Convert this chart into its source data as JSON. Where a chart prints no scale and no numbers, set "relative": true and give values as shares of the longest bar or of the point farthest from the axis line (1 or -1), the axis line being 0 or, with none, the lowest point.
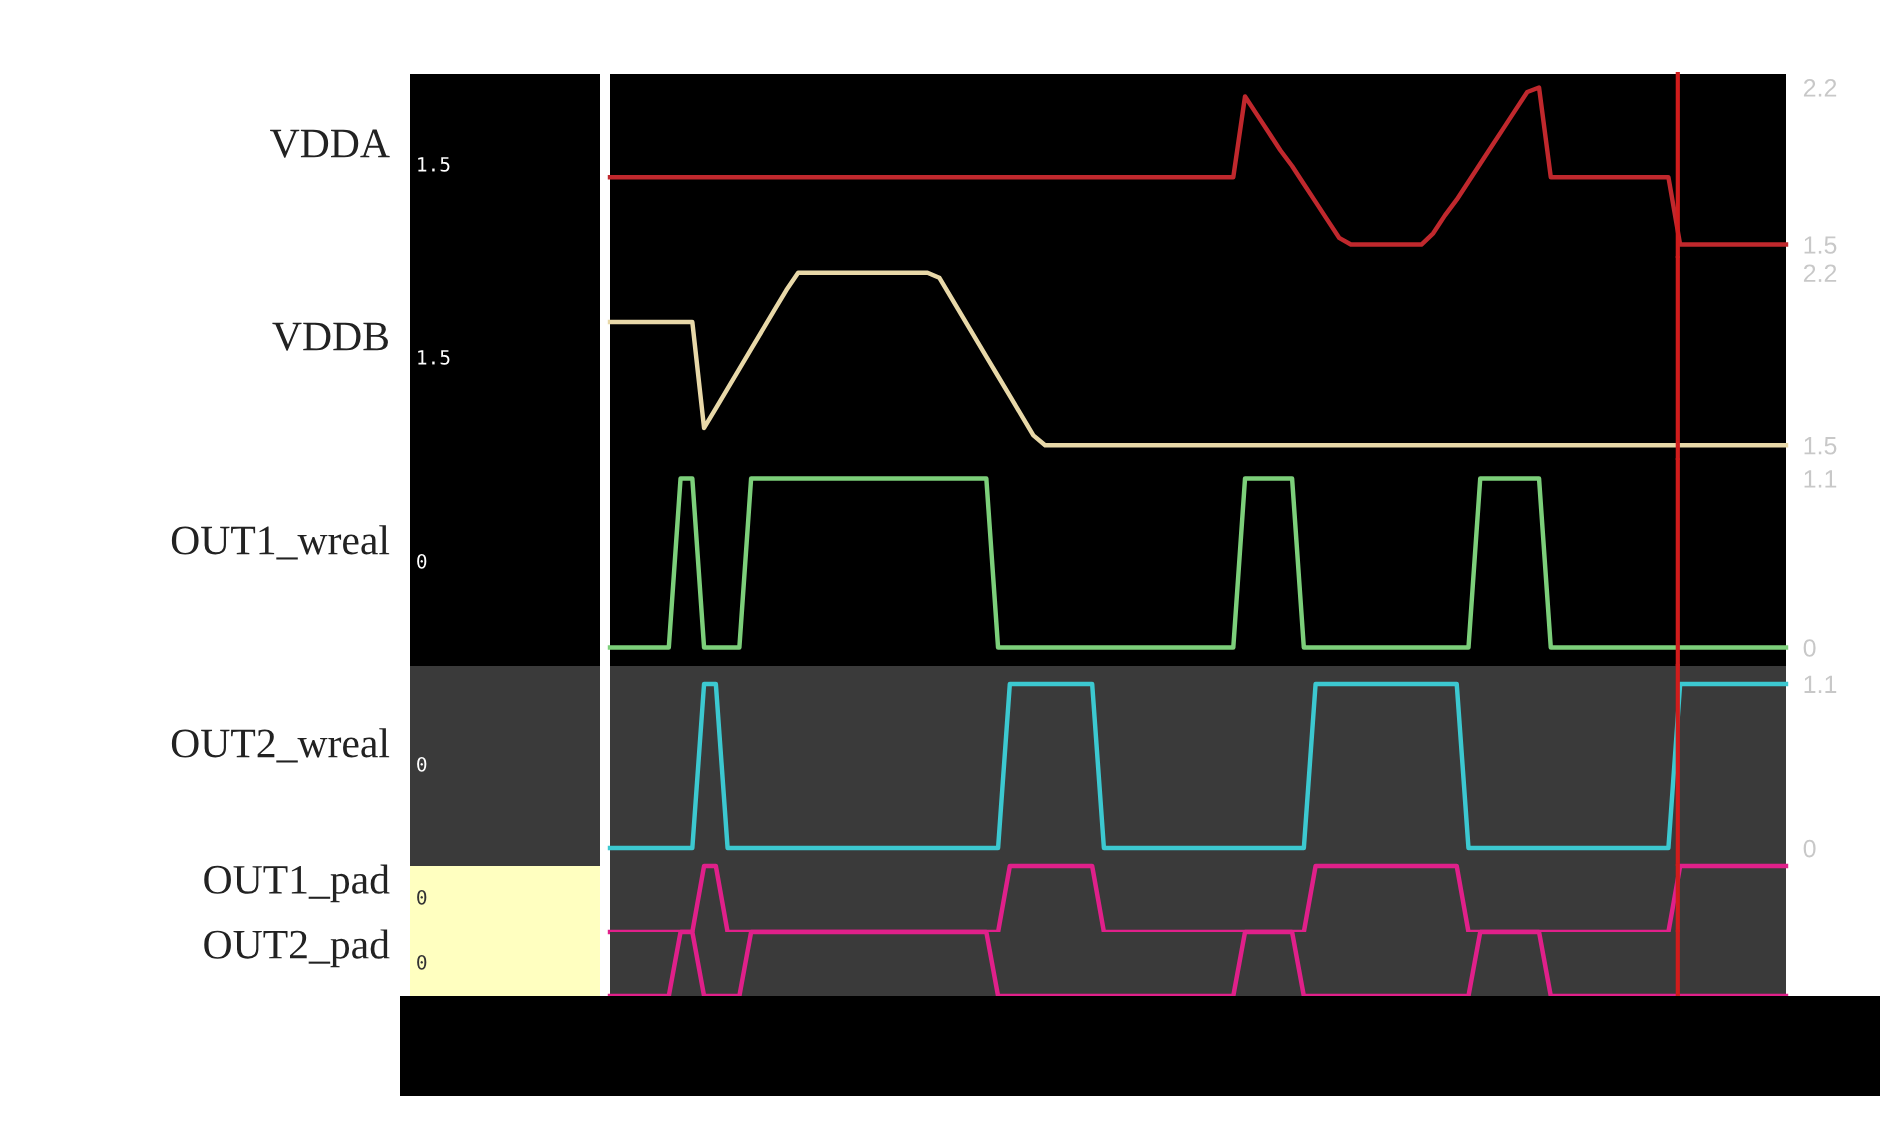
{
  "chart_data": [
    {
      "type": "line",
      "ylabel": "VDDA",
      "categories": [
        null,
        null,
        null,
        null,
        null,
        null,
        null,
        null,
        null,
        null,
        null,
        null,
        null,
        null,
        null,
        null,
        null,
        null,
        null,
        null,
        null,
        null,
        null,
        null,
        null,
        null,
        null,
        null,
        null,
        null,
        null,
        null,
        null,
        null,
        null,
        null,
        null,
        null,
        null,
        null,
        null,
        null,
        null,
        null,
        null,
        null,
        null,
        null,
        null,
        null,
        null,
        null,
        null,
        null,
        null,
        null,
        null,
        null,
        null,
        null,
        null,
        null,
        null,
        null,
        null,
        null,
        null,
        null,
        null,
        null,
        null,
        null,
        null,
        null,
        null,
        null,
        null,
        null,
        null,
        null,
        null,
        null,
        null,
        null,
        null,
        null,
        null,
        null,
        null,
        null,
        null,
        null,
        null,
        null,
        null,
        null,
        null,
        null,
        null,
        null,
        null
      ],
      "ylim": [
        1.44,
        2.26
      ],
      "yticks": [
        1.5,
        2.2
      ],
      "tick_labels": "y",
      "annotations": [
        "1.5"
      ],
      "series": [
        {
          "color": "#c0282d",
          "values": [
            1.8,
            1.8,
            1.8,
            1.8,
            1.8,
            1.8,
            1.8,
            1.8,
            1.8,
            1.8,
            1.8,
            1.8,
            1.8,
            1.8,
            1.8,
            1.8,
            1.8,
            1.8,
            1.8,
            1.8,
            1.8,
            1.8,
            1.8,
            1.8,
            1.8,
            1.8,
            1.8,
            1.8,
            1.8,
            1.8,
            1.8,
            1.8,
            1.8,
            1.8,
            1.8,
            1.8,
            1.8,
            1.8,
            1.8,
            1.8,
            1.8,
            1.8,
            1.8,
            1.8,
            1.8,
            1.8,
            1.8,
            1.8,
            1.8,
            1.8,
            1.8,
            1.8,
            1.8,
            1.8,
            2.16,
            2.08,
            2.0,
            1.92,
            1.85,
            1.77,
            1.69,
            1.61,
            1.53,
            1.5,
            1.5,
            1.5,
            1.5,
            1.5,
            1.5,
            1.5,
            1.55,
            1.63,
            1.7,
            1.78,
            1.86,
            1.94,
            2.02,
            2.1,
            2.18,
            2.2,
            1.8,
            1.8,
            1.8,
            1.8,
            1.8,
            1.8,
            1.8,
            1.8,
            1.8,
            1.8,
            1.8,
            1.5,
            1.5,
            1.5,
            1.5,
            1.5,
            1.5,
            1.5,
            1.5,
            1.5,
            1.5
          ]
        }
      ]
    },
    {
      "type": "line",
      "ylabel": "VDDB",
      "categories": [
        null,
        null,
        null,
        null,
        null,
        null,
        null,
        null,
        null,
        null,
        null,
        null,
        null,
        null,
        null,
        null,
        null,
        null,
        null,
        null,
        null,
        null,
        null,
        null,
        null,
        null,
        null,
        null,
        null,
        null,
        null,
        null,
        null,
        null,
        null,
        null,
        null,
        null,
        null,
        null,
        null,
        null,
        null,
        null,
        null,
        null,
        null,
        null,
        null,
        null,
        null,
        null,
        null,
        null,
        null,
        null,
        null,
        null,
        null,
        null,
        null,
        null,
        null,
        null,
        null,
        null,
        null,
        null,
        null,
        null,
        null,
        null,
        null,
        null,
        null,
        null,
        null,
        null,
        null,
        null,
        null,
        null,
        null,
        null,
        null,
        null,
        null,
        null,
        null,
        null,
        null,
        null,
        null,
        null,
        null,
        null,
        null,
        null,
        null,
        null,
        null
      ],
      "ylim": [
        1.44,
        2.26
      ],
      "yticks": [
        1.5,
        2.2
      ],
      "tick_labels": "y",
      "annotations": [
        "1.5"
      ],
      "series": [
        {
          "color": "#e8d8a8",
          "values": [
            2.0,
            2.0,
            2.0,
            2.0,
            2.0,
            2.0,
            2.0,
            2.0,
            1.57,
            1.65,
            1.73,
            1.81,
            1.89,
            1.97,
            2.05,
            2.13,
            2.2,
            2.2,
            2.2,
            2.2,
            2.2,
            2.2,
            2.2,
            2.2,
            2.2,
            2.2,
            2.2,
            2.2,
            2.18,
            2.1,
            2.02,
            1.94,
            1.86,
            1.78,
            1.7,
            1.62,
            1.54,
            1.5,
            1.5,
            1.5,
            1.5,
            1.5,
            1.5,
            1.5,
            1.5,
            1.5,
            1.5,
            1.5,
            1.5,
            1.5,
            1.5,
            1.5,
            1.5,
            1.5,
            1.5,
            1.5,
            1.5,
            1.5,
            1.5,
            1.5,
            1.5,
            1.5,
            1.5,
            1.5,
            1.5,
            1.5,
            1.5,
            1.5,
            1.5,
            1.5,
            1.5,
            1.5,
            1.5,
            1.5,
            1.5,
            1.5,
            1.5,
            1.5,
            1.5,
            1.5,
            1.5,
            1.5,
            1.5,
            1.5,
            1.5,
            1.5,
            1.5,
            1.5,
            1.5,
            1.5,
            1.5,
            1.5,
            1.5,
            1.5,
            1.5,
            1.5,
            1.5,
            1.5,
            1.5,
            1.5,
            1.5
          ]
        }
      ]
    },
    {
      "type": "line",
      "ylabel": "OUT1_wreal",
      "categories": [
        null,
        null,
        null,
        null,
        null,
        null,
        null,
        null,
        null,
        null,
        null,
        null,
        null,
        null,
        null,
        null,
        null,
        null,
        null,
        null,
        null,
        null,
        null,
        null,
        null,
        null,
        null,
        null,
        null,
        null,
        null,
        null,
        null,
        null,
        null,
        null,
        null,
        null,
        null,
        null,
        null,
        null,
        null,
        null,
        null,
        null,
        null,
        null,
        null,
        null,
        null,
        null,
        null,
        null,
        null,
        null,
        null,
        null,
        null,
        null,
        null,
        null,
        null,
        null,
        null,
        null,
        null,
        null,
        null,
        null,
        null,
        null,
        null,
        null,
        null,
        null,
        null,
        null,
        null,
        null,
        null,
        null,
        null,
        null,
        null,
        null,
        null,
        null,
        null,
        null,
        null,
        null,
        null,
        null,
        null,
        null,
        null,
        null,
        null,
        null,
        null
      ],
      "ylim": [
        -0.12,
        1.22
      ],
      "yticks": [
        0,
        1.1
      ],
      "tick_labels": "y",
      "annotations": [
        "0"
      ],
      "series": [
        {
          "color": "#7ccf7a",
          "values": [
            0,
            0,
            0,
            0,
            0,
            0,
            1.1,
            1.1,
            0,
            0,
            0,
            0,
            1.1,
            1.1,
            1.1,
            1.1,
            1.1,
            1.1,
            1.1,
            1.1,
            1.1,
            1.1,
            1.1,
            1.1,
            1.1,
            1.1,
            1.1,
            1.1,
            1.1,
            1.1,
            1.1,
            1.1,
            1.1,
            0,
            0,
            0,
            0,
            0,
            0,
            0,
            0,
            0,
            0,
            0,
            0,
            0,
            0,
            0,
            0,
            0,
            0,
            0,
            0,
            0,
            1.1,
            1.1,
            1.1,
            1.1,
            1.1,
            0,
            0,
            0,
            0,
            0,
            0,
            0,
            0,
            0,
            0,
            0,
            0,
            0,
            0,
            0,
            1.1,
            1.1,
            1.1,
            1.1,
            1.1,
            1.1,
            0,
            0,
            0,
            0,
            0,
            0,
            0,
            0,
            0,
            0,
            0,
            0,
            0,
            0,
            0,
            0,
            0,
            0,
            0,
            0,
            0
          ]
        }
      ]
    },
    {
      "type": "line",
      "ylabel": "OUT2_wreal",
      "categories": [
        null,
        null,
        null,
        null,
        null,
        null,
        null,
        null,
        null,
        null,
        null,
        null,
        null,
        null,
        null,
        null,
        null,
        null,
        null,
        null,
        null,
        null,
        null,
        null,
        null,
        null,
        null,
        null,
        null,
        null,
        null,
        null,
        null,
        null,
        null,
        null,
        null,
        null,
        null,
        null,
        null,
        null,
        null,
        null,
        null,
        null,
        null,
        null,
        null,
        null,
        null,
        null,
        null,
        null,
        null,
        null,
        null,
        null,
        null,
        null,
        null,
        null,
        null,
        null,
        null,
        null,
        null,
        null,
        null,
        null,
        null,
        null,
        null,
        null,
        null,
        null,
        null,
        null,
        null,
        null,
        null,
        null,
        null,
        null,
        null,
        null,
        null,
        null,
        null,
        null,
        null,
        null,
        null,
        null,
        null,
        null,
        null,
        null,
        null,
        null,
        null
      ],
      "ylim": [
        -0.12,
        1.22
      ],
      "yticks": [
        0,
        1.1
      ],
      "tick_labels": "y",
      "annotations": [
        "0"
      ],
      "series": [
        {
          "color": "#3cc8d0",
          "values": [
            0,
            0,
            0,
            0,
            0,
            0,
            0,
            0,
            1.1,
            1.1,
            0,
            0,
            0,
            0,
            0,
            0,
            0,
            0,
            0,
            0,
            0,
            0,
            0,
            0,
            0,
            0,
            0,
            0,
            0,
            0,
            0,
            0,
            0,
            0,
            1.1,
            1.1,
            1.1,
            1.1,
            1.1,
            1.1,
            1.1,
            1.1,
            0,
            0,
            0,
            0,
            0,
            0,
            0,
            0,
            0,
            0,
            0,
            0,
            0,
            0,
            0,
            0,
            0,
            0,
            1.1,
            1.1,
            1.1,
            1.1,
            1.1,
            1.1,
            1.1,
            1.1,
            1.1,
            1.1,
            1.1,
            1.1,
            1.1,
            0,
            0,
            0,
            0,
            0,
            0,
            0,
            0,
            0,
            0,
            0,
            0,
            0,
            0,
            0,
            0,
            0,
            0,
            1.1,
            1.1,
            1.1,
            1.1,
            1.1,
            1.1,
            1.1,
            1.1,
            1.1,
            1.1
          ]
        }
      ]
    },
    {
      "type": "line",
      "ylabel": "OUT1_pad",
      "categories": [
        null,
        null,
        null,
        null,
        null,
        null,
        null,
        null,
        null,
        null,
        null,
        null,
        null,
        null,
        null,
        null,
        null,
        null,
        null,
        null,
        null,
        null,
        null,
        null,
        null,
        null,
        null,
        null,
        null,
        null,
        null,
        null,
        null,
        null,
        null,
        null,
        null,
        null,
        null,
        null,
        null,
        null,
        null,
        null,
        null,
        null,
        null,
        null,
        null,
        null,
        null,
        null,
        null,
        null,
        null,
        null,
        null,
        null,
        null,
        null,
        null,
        null,
        null,
        null,
        null,
        null,
        null,
        null,
        null,
        null,
        null,
        null,
        null,
        null,
        null,
        null,
        null,
        null,
        null,
        null,
        null,
        null,
        null,
        null,
        null,
        null,
        null,
        null,
        null,
        null,
        null,
        null,
        null,
        null,
        null,
        null,
        null,
        null,
        null,
        null,
        null
      ],
      "relative": true,
      "tick_labels": false,
      "annotations": [
        "0"
      ],
      "series": [
        {
          "color": "#e0208a",
          "values": [
            0,
            0,
            0,
            0,
            0,
            0,
            0,
            0,
            1,
            1,
            0,
            0,
            0,
            0,
            0,
            0,
            0,
            0,
            0,
            0,
            0,
            0,
            0,
            0,
            0,
            0,
            0,
            0,
            0,
            0,
            0,
            0,
            0,
            0,
            1,
            1,
            1,
            1,
            1,
            1,
            1,
            1,
            0,
            0,
            0,
            0,
            0,
            0,
            0,
            0,
            0,
            0,
            0,
            0,
            0,
            0,
            0,
            0,
            0,
            0,
            1,
            1,
            1,
            1,
            1,
            1,
            1,
            1,
            1,
            1,
            1,
            1,
            1,
            0,
            0,
            0,
            0,
            0,
            0,
            0,
            0,
            0,
            0,
            0,
            0,
            0,
            0,
            0,
            0,
            0,
            0,
            1,
            1,
            1,
            1,
            1,
            1,
            1,
            1,
            1,
            1
          ]
        }
      ]
    },
    {
      "type": "line",
      "ylabel": "OUT2_pad",
      "categories": [
        null,
        null,
        null,
        null,
        null,
        null,
        null,
        null,
        null,
        null,
        null,
        null,
        null,
        null,
        null,
        null,
        null,
        null,
        null,
        null,
        null,
        null,
        null,
        null,
        null,
        null,
        null,
        null,
        null,
        null,
        null,
        null,
        null,
        null,
        null,
        null,
        null,
        null,
        null,
        null,
        null,
        null,
        null,
        null,
        null,
        null,
        null,
        null,
        null,
        null,
        null,
        null,
        null,
        null,
        null,
        null,
        null,
        null,
        null,
        null,
        null,
        null,
        null,
        null,
        null,
        null,
        null,
        null,
        null,
        null,
        null,
        null,
        null,
        null,
        null,
        null,
        null,
        null,
        null,
        null,
        null,
        null,
        null,
        null,
        null,
        null,
        null,
        null,
        null,
        null,
        null,
        null,
        null,
        null,
        null,
        null,
        null,
        null,
        null,
        null,
        null
      ],
      "relative": true,
      "tick_labels": false,
      "annotations": [
        "0"
      ],
      "series": [
        {
          "color": "#e0208a",
          "values": [
            0,
            0,
            0,
            0,
            0,
            0,
            1,
            1,
            0,
            0,
            0,
            0,
            1,
            1,
            1,
            1,
            1,
            1,
            1,
            1,
            1,
            1,
            1,
            1,
            1,
            1,
            1,
            1,
            1,
            1,
            1,
            1,
            1,
            0,
            0,
            0,
            0,
            0,
            0,
            0,
            0,
            0,
            0,
            0,
            0,
            0,
            0,
            0,
            0,
            0,
            0,
            0,
            0,
            0,
            1,
            1,
            1,
            1,
            1,
            0,
            0,
            0,
            0,
            0,
            0,
            0,
            0,
            0,
            0,
            0,
            0,
            0,
            0,
            0,
            1,
            1,
            1,
            1,
            1,
            1,
            0,
            0,
            0,
            0,
            0,
            0,
            0,
            0,
            0,
            0,
            0,
            0,
            0,
            0,
            0,
            0,
            0,
            0,
            0,
            0,
            0
          ]
        }
      ]
    }
  ]
}
